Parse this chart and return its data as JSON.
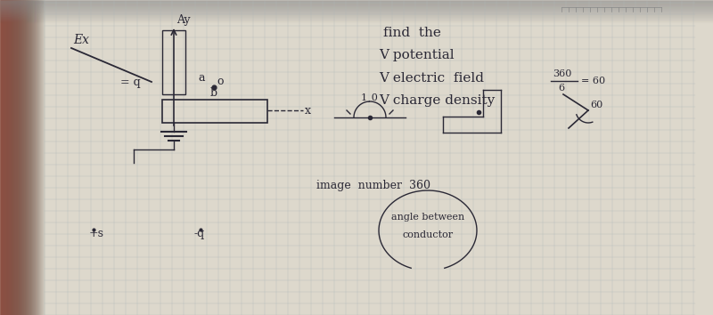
{
  "bg_left_color": "#c8a090",
  "bg_paper_color": "#ddd8cc",
  "paper_light_color": "#e8e4da",
  "grid_color": "#b0b8b8",
  "ink_color": "#2a2835",
  "title": "find  the",
  "item1": "V potential",
  "item2": "V electric  field",
  "item3": "V charge density",
  "ex_label": "Ex",
  "y_label": "Ay",
  "x_label": "x",
  "a_label": "a",
  "b_label": "b",
  "o_label": "o",
  "eq_label": "= q",
  "plus_s_label": "+s",
  "minus_q_label": "-q",
  "angle_label": "1¸0",
  "angle60_label": "60",
  "img_number": "image  number  360",
  "angle_between_line1": "angle between",
  "angle_between_line2": "conductor",
  "frac_360": "360",
  "frac_6": "6",
  "frac_eq": "= 60"
}
